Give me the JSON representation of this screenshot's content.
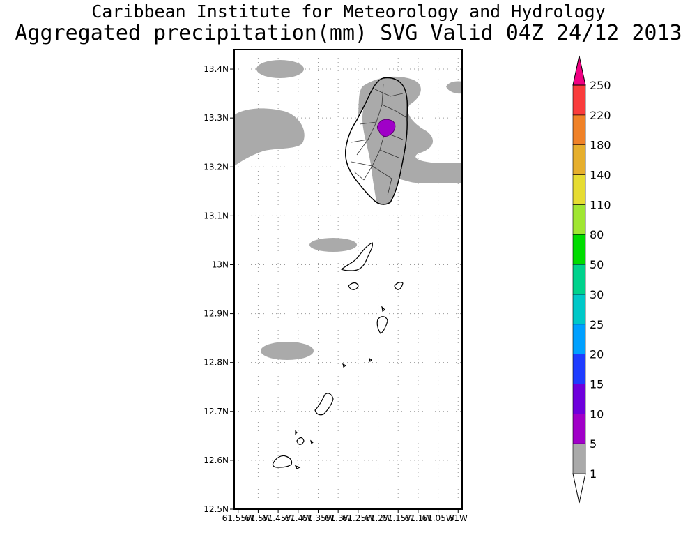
{
  "header": {
    "title": "Caribbean Institute for Meteorology and Hydrology",
    "subtitle": "Aggregated precipitation(mm) SVG Valid 04Z 24/12 2013"
  },
  "map": {
    "lat_range": [
      12.5,
      13.44
    ],
    "lon_range": [
      -61.56,
      -60.99
    ],
    "lat_ticks": [
      "13.4N",
      "13.3N",
      "13.2N",
      "13.1N",
      "13N",
      "12.9N",
      "12.8N",
      "12.7N",
      "12.6N",
      "12.5N"
    ],
    "lon_ticks": [
      "61.55W",
      "61.5W",
      "61.45W",
      "61.4W",
      "61.35W",
      "61.3W",
      "61.25W",
      "61.2W",
      "61.15W",
      "61.1W",
      "61.05W",
      "61W"
    ],
    "grid": true,
    "land_color": "#ffffff",
    "rain_color_1_5": "#aaaaaa",
    "rain_color_5_10": "#a000c8"
  },
  "legend": {
    "placement": "right",
    "levels": [
      "1",
      "5",
      "10",
      "15",
      "20",
      "25",
      "30",
      "50",
      "80",
      "110",
      "140",
      "180",
      "220",
      "250"
    ],
    "colors": [
      "#aaaaaa",
      "#a000c8",
      "#6e00dc",
      "#1e3cff",
      "#00a0ff",
      "#00c8c8",
      "#00d28c",
      "#00dc00",
      "#a0e632",
      "#e6dc32",
      "#e6af2d",
      "#f08228",
      "#fa3c3c",
      "#f00082"
    ]
  }
}
